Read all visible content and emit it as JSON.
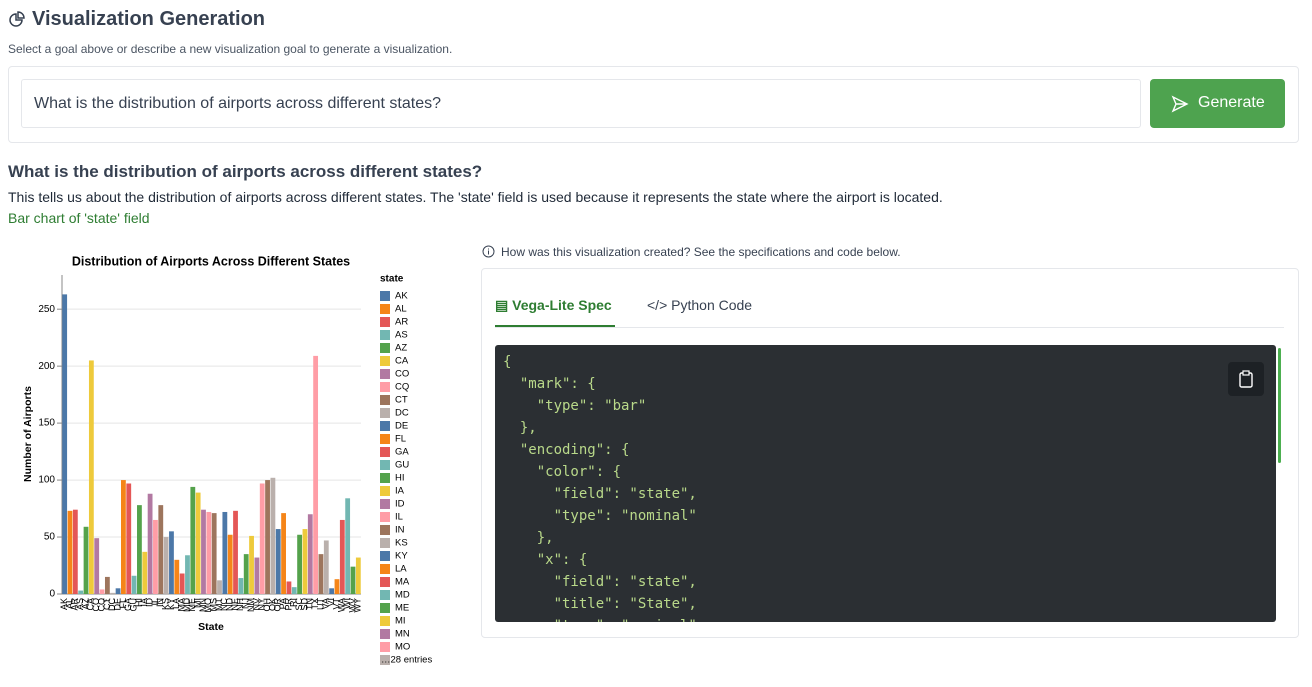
{
  "header": {
    "title": "Visualization Generation",
    "subtitle": "Select a goal above or describe a new visualization goal to generate a visualization."
  },
  "input": {
    "value": "What is the distribution of airports across different states?",
    "button": "Generate"
  },
  "goal": {
    "question": "What is the distribution of airports across different states?",
    "rationale": "This tells us about the distribution of airports across different states. The 'state' field is used because it represents the state where the airport is located.",
    "chart_type": "Bar chart of 'state' field"
  },
  "chart_data": {
    "type": "bar",
    "title": "Distribution of Airports Across Different States",
    "x_label": "State",
    "y_label": "Number of Airports",
    "legend_title": "state",
    "legend_more": "…28 entries",
    "categories": [
      "AK",
      "AL",
      "AR",
      "AS",
      "AZ",
      "CA",
      "CO",
      "CQ",
      "CT",
      "DC",
      "DE",
      "FL",
      "GA",
      "GU",
      "HI",
      "IA",
      "ID",
      "IL",
      "IN",
      "KS",
      "KY",
      "LA",
      "MA",
      "MD",
      "ME",
      "MI",
      "MN",
      "MO",
      "MS",
      "MT",
      "NC",
      "ND",
      "NE",
      "NH",
      "NJ",
      "NM",
      "NV",
      "NY",
      "OH",
      "OK",
      "OR",
      "PA",
      "PR",
      "RI",
      "SC",
      "SD",
      "TN",
      "TX",
      "UT",
      "VA",
      "VI",
      "VT",
      "WA",
      "WI",
      "WV",
      "WY"
    ],
    "values": [
      263,
      73,
      74,
      3,
      59,
      205,
      49,
      4,
      15,
      1,
      5,
      100,
      97,
      16,
      78,
      37,
      88,
      65,
      78,
      50,
      55,
      30,
      18,
      34,
      94,
      89,
      74,
      72,
      71,
      12,
      72,
      52,
      73,
      14,
      35,
      51,
      32,
      97,
      100,
      102,
      57,
      71,
      11,
      6,
      52,
      57,
      70,
      209,
      35,
      47,
      5,
      13,
      65,
      84,
      24,
      32
    ],
    "colors": [
      "#4c78a8",
      "#f58518",
      "#e45756",
      "#72b7b2",
      "#54a24b",
      "#eeca3b",
      "#b279a2",
      "#ff9da6",
      "#9d755d",
      "#bab0ac"
    ],
    "ylim": [
      0,
      280
    ],
    "yticks": [
      0,
      50,
      100,
      150,
      200,
      250
    ],
    "grid": true,
    "legend_count": 28
  },
  "spec_panel": {
    "info": "How was this visualization created? See the specifications and code below.",
    "tabs": [
      "Vega-Lite Spec",
      "Python Code"
    ],
    "code_lines": [
      "{",
      "  \"mark\": {",
      "    \"type\": \"bar\"",
      "  },",
      "  \"encoding\": {",
      "    \"color\": {",
      "      \"field\": \"state\",",
      "      \"type\": \"nominal\"",
      "    },",
      "    \"x\": {",
      "      \"field\": \"state\",",
      "      \"title\": \"State\",",
      "      \"type\": \"nominal\""
    ]
  }
}
